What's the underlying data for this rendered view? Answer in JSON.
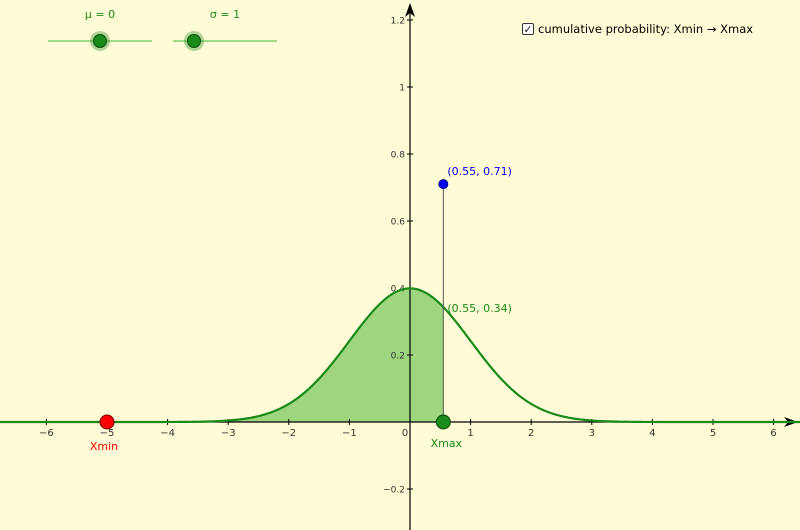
{
  "mu_slider": {
    "label": "μ = 0",
    "fraction": 0.5
  },
  "sigma_slider": {
    "label": "σ = 1",
    "fraction": 0.2
  },
  "cumulative_toggle": {
    "checked": true,
    "check_glyph": "✓",
    "label": "cumulative probability: Xmin → Xmax"
  },
  "points": {
    "xmin": {
      "label": "Xmin",
      "x": -5,
      "y": 0,
      "color": "#ff0000"
    },
    "xmax": {
      "label": "Xmax",
      "x": 0.55,
      "y": 0,
      "color": "#1a8a1a"
    },
    "pdf_point": {
      "label": "(0.55, 0.34)",
      "x": 0.55,
      "y": 0.34,
      "color": "#1a8a1a"
    },
    "cdf_point": {
      "label": "(0.55, 0.71)",
      "x": 0.55,
      "y": 0.71,
      "color": "#0000ee"
    }
  },
  "axes": {
    "x_ticks": [
      "−6",
      "−5",
      "−4",
      "−3",
      "−2",
      "−1",
      "0",
      "1",
      "2",
      "3",
      "4",
      "5",
      "6"
    ],
    "x_tick_values": [
      -6,
      -5,
      -4,
      -3,
      -2,
      -1,
      0,
      1,
      2,
      3,
      4,
      5,
      6
    ],
    "y_ticks": [
      "−0.2",
      "0.2",
      "0.4",
      "0.6",
      "0.8",
      "1",
      "1.2"
    ],
    "y_tick_values": [
      -0.2,
      0.2,
      0.4,
      0.6,
      0.8,
      1,
      1.2
    ]
  },
  "curve": {
    "mu": 0,
    "sigma": 1,
    "color": "#1a8a1a",
    "fill": "#99d47a"
  }
}
